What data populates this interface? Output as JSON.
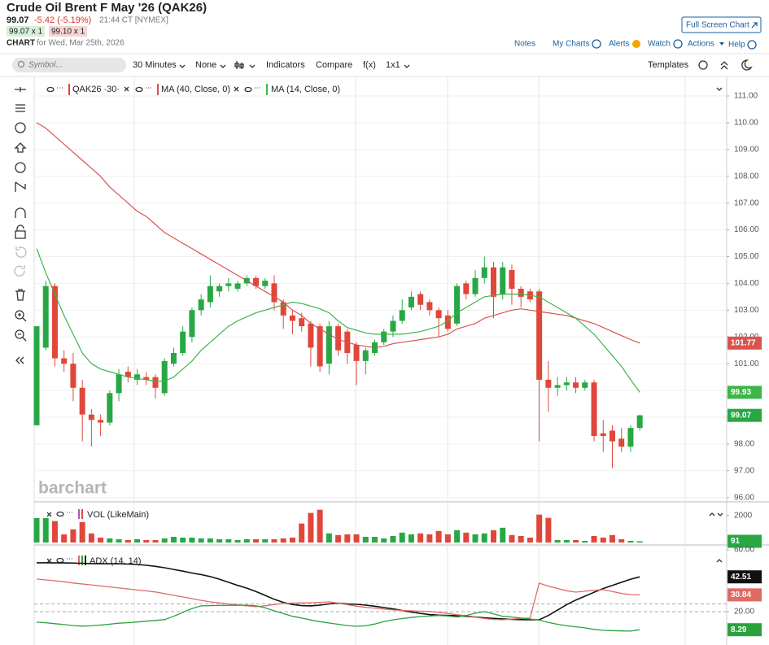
{
  "header": {
    "title": "Crude Oil Brent F May '26 (QAK26)",
    "price": "99.07",
    "change": "-5.42 (-5.19%)",
    "time": "21:44 CT [NYMEX]",
    "bid": "99.07 x 1",
    "ask": "99.10 x 1",
    "chart_label": "CHART",
    "date": "for Wed, Mar 25th, 2026",
    "full_screen": "Full Screen Chart"
  },
  "nav": [
    "Notes",
    "My Charts",
    "Alerts",
    "Watch",
    "Actions",
    "Help"
  ],
  "toolbar": {
    "symbol": "Symbol...",
    "interval": "30 Minutes",
    "type": "None",
    "indicators": "Indicators",
    "compare": "Compare",
    "fx": "f(x)",
    "layout": "1x1",
    "templates": "Templates"
  },
  "chart_data": [
    {
      "type": "candlestick",
      "name": "QAK26 ·30·",
      "watermark": "barchart",
      "up_color": "#27a844",
      "down_color": "#e0473a",
      "grid": true,
      "open": [
        98.7,
        101.6,
        103.9,
        101.2,
        101.0,
        100.1,
        99.1,
        98.9,
        98.8,
        99.9,
        100.7,
        100.4,
        100.5,
        100.5,
        99.9,
        101.0,
        101.4,
        102.0,
        103.0,
        103.3,
        103.7,
        103.9,
        103.8,
        104.0,
        104.2,
        103.9,
        104.0,
        103.3,
        102.8,
        102.7,
        102.5,
        102.4,
        101.0,
        102.4,
        102.2,
        101.7,
        101.1,
        101.4,
        101.8,
        102.2,
        102.6,
        103.1,
        103.6,
        103.3,
        103.0,
        102.8,
        102.5,
        104.0,
        103.6,
        104.2,
        104.6,
        103.6,
        104.5,
        103.8,
        103.7,
        103.7,
        100.4,
        100.1,
        100.2,
        100.3,
        100.1,
        100.3,
        98.4,
        98.5,
        98.2,
        97.9,
        98.6
      ],
      "high": [
        102.4,
        104.1,
        104.0,
        101.5,
        101.4,
        100.4,
        99.3,
        99.1,
        100.0,
        100.8,
        100.9,
        100.8,
        100.7,
        100.6,
        101.2,
        101.6,
        102.4,
        103.1,
        103.6,
        104.3,
        104.0,
        104.2,
        104.1,
        104.3,
        104.3,
        104.2,
        104.3,
        103.4,
        103.0,
        102.9,
        102.6,
        102.5,
        102.6,
        102.5,
        102.3,
        101.8,
        101.6,
        101.9,
        102.3,
        102.8,
        103.4,
        103.7,
        103.7,
        103.4,
        103.1,
        103.0,
        104.0,
        104.1,
        104.5,
        105.0,
        104.8,
        104.8,
        104.7,
        103.9,
        103.8,
        103.8,
        101.1,
        100.5,
        100.5,
        100.5,
        100.4,
        100.4,
        98.9,
        98.7,
        98.6,
        98.7,
        99.1
      ],
      "low": [
        98.7,
        101.5,
        100.9,
        100.7,
        99.6,
        98.1,
        97.9,
        98.3,
        98.7,
        99.6,
        100.3,
        100.2,
        100.2,
        99.7,
        99.8,
        100.9,
        101.3,
        101.8,
        102.8,
        103.1,
        103.5,
        103.7,
        103.7,
        103.9,
        103.8,
        103.8,
        103.0,
        102.3,
        102.1,
        102.2,
        100.9,
        100.7,
        100.6,
        101.3,
        101.0,
        100.2,
        100.6,
        101.3,
        101.7,
        102.0,
        102.5,
        103.0,
        103.0,
        102.8,
        102.0,
        102.2,
        102.4,
        103.4,
        103.5,
        104.0,
        102.7,
        103.4,
        103.2,
        103.1,
        103.3,
        98.1,
        99.2,
        99.8,
        100.0,
        99.9,
        100.0,
        98.1,
        97.7,
        97.1,
        97.7,
        97.7,
        98.5
      ],
      "close": [
        102.4,
        103.9,
        101.2,
        101.0,
        100.1,
        99.1,
        98.9,
        98.8,
        99.9,
        100.6,
        100.5,
        100.6,
        100.4,
        100.1,
        101.1,
        101.4,
        102.2,
        103.0,
        103.4,
        103.9,
        103.9,
        104.0,
        104.0,
        104.2,
        103.9,
        104.1,
        103.3,
        102.8,
        102.6,
        102.4,
        101.6,
        100.9,
        102.4,
        101.5,
        101.4,
        101.1,
        101.5,
        101.8,
        102.2,
        102.6,
        103.0,
        103.5,
        103.2,
        103.0,
        102.7,
        102.3,
        103.9,
        103.6,
        104.2,
        104.6,
        103.5,
        104.6,
        103.8,
        103.5,
        103.4,
        100.4,
        100.1,
        100.2,
        100.3,
        100.1,
        100.3,
        98.3,
        98.3,
        98.1,
        97.9,
        98.6,
        99.07
      ],
      "overlays": [
        {
          "name": "MA (40, Close, 0)",
          "color": "#d9534f",
          "values": [
            110.0,
            109.8,
            109.5,
            109.2,
            108.9,
            108.6,
            108.3,
            108.0,
            107.6,
            107.3,
            107.0,
            106.7,
            106.5,
            106.2,
            105.9,
            105.7,
            105.5,
            105.3,
            105.1,
            104.9,
            104.7,
            104.5,
            104.3,
            104.1,
            103.9,
            103.7,
            103.5,
            103.3,
            103.0,
            102.8,
            102.5,
            102.3,
            102.1,
            101.9,
            101.8,
            101.7,
            101.65,
            101.6,
            101.65,
            101.75,
            101.8,
            101.85,
            101.9,
            101.95,
            102.0,
            102.1,
            102.3,
            102.4,
            102.5,
            102.7,
            102.8,
            102.9,
            103.0,
            103.05,
            103.0,
            102.95,
            102.9,
            102.85,
            102.8,
            102.7,
            102.6,
            102.5,
            102.35,
            102.2,
            102.05,
            101.9,
            101.77
          ]
        },
        {
          "name": "MA (14, Close, 0)",
          "color": "#3db54a",
          "values": [
            105.3,
            104.4,
            103.6,
            102.8,
            102.1,
            101.4,
            101.0,
            100.8,
            100.7,
            100.6,
            100.5,
            100.45,
            100.4,
            100.35,
            100.35,
            100.5,
            100.8,
            101.1,
            101.5,
            101.8,
            102.1,
            102.4,
            102.6,
            102.75,
            102.9,
            103.0,
            103.1,
            103.2,
            103.3,
            103.25,
            103.15,
            103.05,
            102.9,
            102.6,
            102.35,
            102.25,
            102.15,
            102.1,
            102.1,
            102.1,
            102.1,
            102.15,
            102.2,
            102.3,
            102.4,
            102.6,
            102.9,
            103.1,
            103.3,
            103.5,
            103.55,
            103.6,
            103.6,
            103.6,
            103.55,
            103.5,
            103.3,
            103.1,
            102.9,
            102.7,
            102.4,
            102.1,
            101.7,
            101.3,
            100.9,
            100.4,
            99.93
          ]
        }
      ],
      "ylim": [
        95.9,
        111.7
      ],
      "yticks": [
        {
          "value": 96,
          "label": "96.00"
        },
        {
          "value": 97,
          "label": "97.00"
        },
        {
          "value": 98,
          "label": "98.00"
        },
        {
          "value": 99,
          "label": "99.00"
        },
        {
          "value": 100,
          "label": "100.00"
        },
        {
          "value": 101,
          "label": "101.00"
        },
        {
          "value": 102,
          "label": "102.00"
        },
        {
          "value": 103,
          "label": "103.00"
        },
        {
          "value": 104,
          "label": "104.00"
        },
        {
          "value": 105,
          "label": "105.00"
        },
        {
          "value": 106,
          "label": "106.00"
        },
        {
          "value": 107,
          "label": "107.00"
        },
        {
          "value": 108,
          "label": "108.00"
        },
        {
          "value": 109,
          "label": "109.00"
        },
        {
          "value": 110,
          "label": "110.00"
        },
        {
          "value": 111,
          "label": "111.00"
        }
      ]
    },
    {
      "type": "bar",
      "name": "VOL (LikeMain)",
      "values": [
        1800,
        1800,
        1580,
        600,
        970,
        1500,
        670,
        360,
        300,
        240,
        180,
        240,
        180,
        180,
        300,
        420,
        360,
        360,
        300,
        300,
        240,
        240,
        180,
        240,
        240,
        240,
        240,
        300,
        360,
        1400,
        2180,
        2420,
        670,
        550,
        600,
        600,
        420,
        420,
        300,
        480,
        730,
        600,
        670,
        600,
        850,
        600,
        910,
        730,
        600,
        670,
        910,
        1090,
        550,
        480,
        360,
        2060,
        1820,
        180,
        180,
        180,
        120,
        480,
        360,
        550,
        240,
        120,
        91
      ],
      "ylim": [
        0,
        2700
      ],
      "yticks": [
        2000
      ]
    },
    {
      "type": "line",
      "name": "ADX (14, 14)",
      "series": [
        {
          "color": "#111111",
          "values": [
            51.6,
            51.6,
            51.5,
            51.5,
            51.4,
            51.3,
            51.1,
            51.0,
            51.0,
            51.0,
            50.8,
            50.5,
            50.0,
            49.3,
            48.4,
            47.3,
            46.2,
            45.0,
            44.0,
            42.7,
            41.0,
            39.0,
            37.0,
            35.2,
            33.0,
            30.5,
            28.0,
            26.0,
            24.6,
            23.9,
            23.7,
            24.2,
            25.0,
            25.5,
            25.0,
            24.7,
            24.2,
            23.5,
            22.6,
            21.8,
            20.8,
            19.8,
            18.8,
            18.1,
            17.7,
            17.5,
            17.4,
            17.0,
            16.5,
            16.0,
            15.6,
            15.3,
            15.0,
            14.8,
            14.7,
            14.7,
            17.5,
            21.0,
            24.5,
            27.5,
            30.0,
            32.5,
            35.0,
            37.0,
            39.0,
            41.0,
            42.51
          ]
        },
        {
          "color": "#e06a66",
          "values": [
            41.1,
            40.5,
            40.0,
            39.3,
            38.5,
            37.9,
            37.3,
            36.6,
            36.0,
            35.3,
            34.7,
            34.0,
            33.4,
            32.7,
            31.6,
            30.5,
            29.5,
            28.4,
            27.3,
            26.3,
            25.7,
            25.0,
            24.4,
            23.8,
            23.2,
            23.8,
            24.6,
            25.3,
            25.5,
            25.6,
            25.8,
            26.0,
            26.3,
            25.5,
            24.5,
            23.5,
            22.8,
            22.3,
            21.6,
            21.1,
            20.8,
            20.5,
            20.3,
            20.1,
            19.5,
            18.8,
            18.0,
            17.4,
            16.5,
            15.5,
            15.0,
            14.7,
            15.2,
            15.6,
            15.8,
            38.4,
            36.5,
            35.0,
            33.5,
            32.6,
            33.2,
            33.8,
            34.2,
            33.0,
            31.8,
            31.0,
            30.84
          ]
        },
        {
          "color": "#2ca03c",
          "values": [
            13.2,
            12.8,
            12.2,
            11.6,
            11.0,
            10.6,
            10.8,
            11.3,
            11.9,
            12.5,
            12.8,
            13.3,
            13.8,
            14.3,
            14.8,
            17.0,
            19.5,
            22.0,
            23.7,
            23.9,
            24.0,
            24.1,
            24.1,
            24.2,
            23.8,
            22.5,
            20.5,
            18.8,
            17.0,
            15.8,
            14.6,
            13.5,
            12.6,
            11.8,
            11.0,
            10.5,
            10.8,
            12.0,
            13.5,
            14.7,
            15.5,
            16.2,
            16.8,
            17.2,
            17.5,
            17.2,
            16.5,
            17.5,
            19.0,
            20.0,
            18.5,
            17.0,
            16.5,
            15.8,
            15.2,
            14.5,
            13.0,
            11.8,
            10.8,
            10.2,
            9.5,
            8.5,
            7.9,
            7.7,
            7.5,
            7.4,
            8.29
          ]
        }
      ],
      "reference_lines": [
        25,
        20
      ],
      "ylim": [
        -1.6,
        62.1
      ],
      "yticks": [
        {
          "value": 60,
          "label": "60.00"
        },
        {
          "value": 20,
          "label": "20.00"
        }
      ]
    }
  ]
}
